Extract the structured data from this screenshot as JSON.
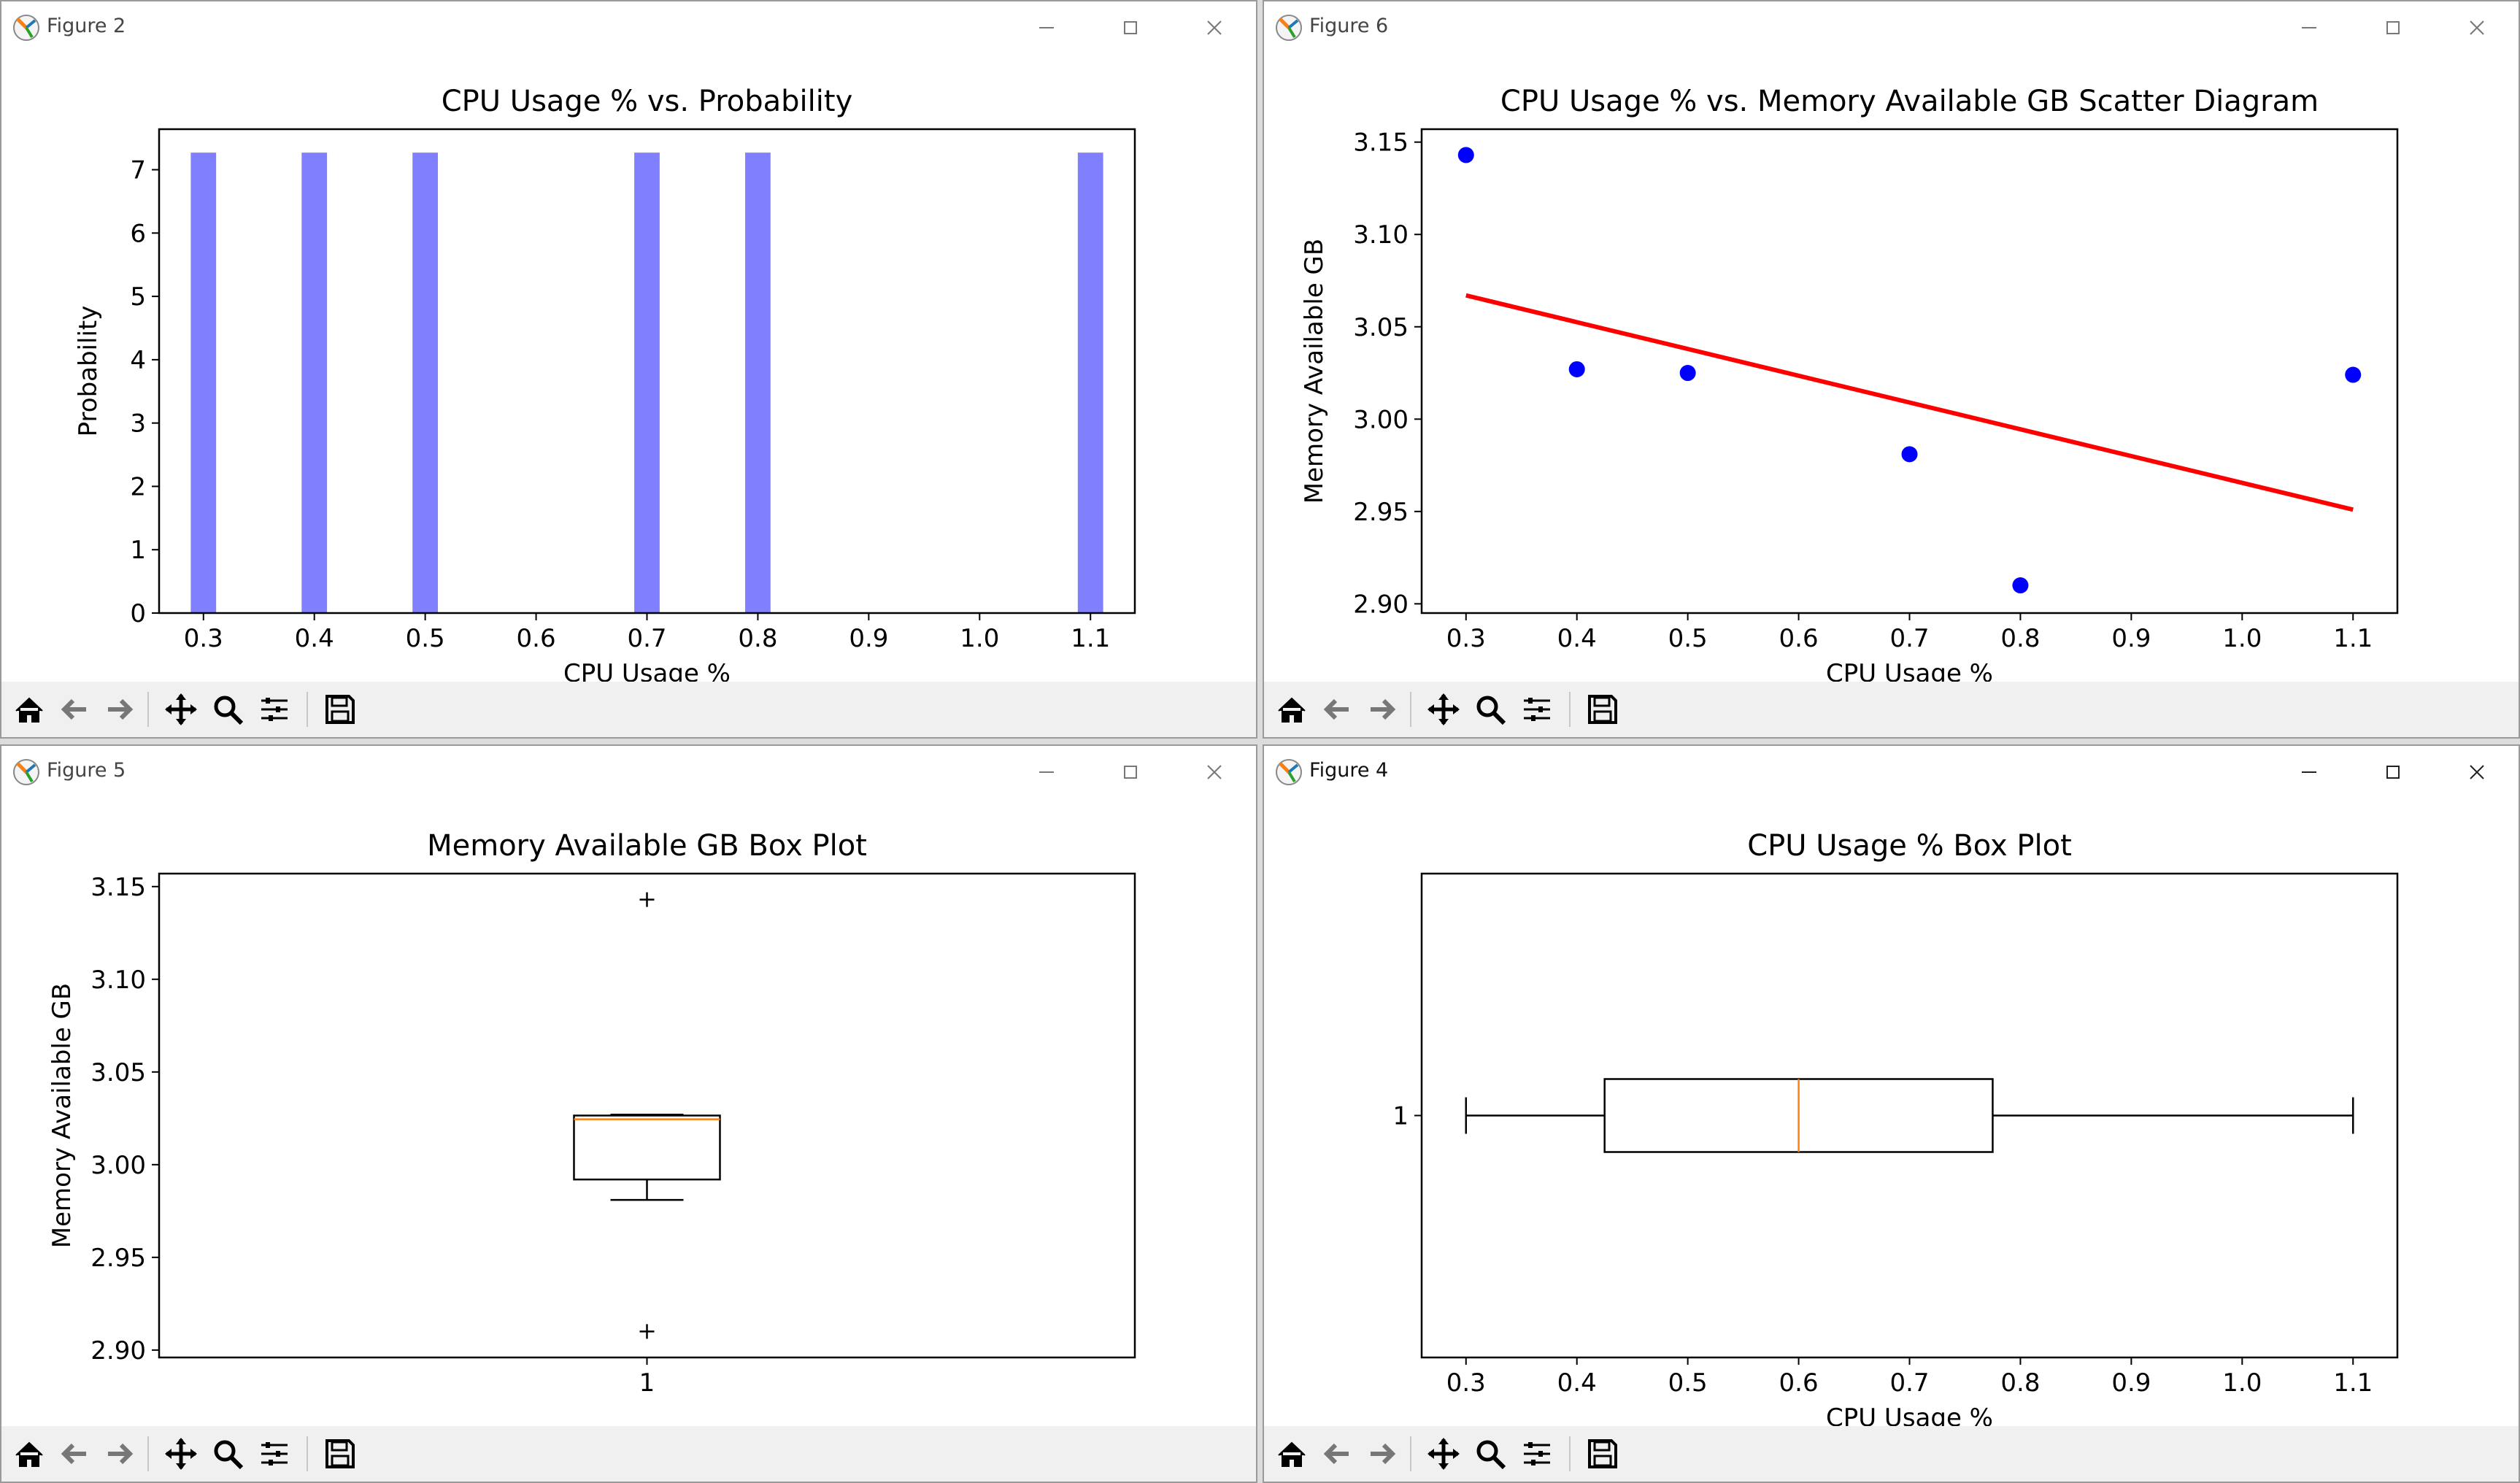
{
  "windows": [
    {
      "id": "fig2",
      "title": "Figure 2",
      "active": false
    },
    {
      "id": "fig6",
      "title": "Figure 6",
      "active": false
    },
    {
      "id": "fig5",
      "title": "Figure 5",
      "active": false
    },
    {
      "id": "fig4",
      "title": "Figure 4",
      "active": true
    }
  ],
  "toolbar_icons": [
    "home-icon",
    "back-arrow-icon",
    "forward-arrow-icon",
    "pan-icon",
    "zoom-icon",
    "configure-subplots-icon",
    "save-icon"
  ],
  "colors": {
    "histogram_bar": "#8080ff",
    "scatter_point": "#0000ff",
    "regression_line": "#ff0000",
    "median_line": "#ff7f0e"
  },
  "chart_data": [
    {
      "window": "fig2",
      "type": "bar",
      "title": "CPU Usage % vs. Probability",
      "xlabel": "CPU Usage %",
      "ylabel": "Probability",
      "x": [
        0.3,
        0.4,
        0.5,
        0.7,
        0.8,
        1.1
      ],
      "values": [
        7.27,
        7.27,
        7.27,
        7.27,
        7.27,
        7.27
      ],
      "bar_width": 0.0229,
      "xlim": [
        0.26,
        1.14
      ],
      "ylim": [
        0,
        7.64
      ],
      "xticks": [
        "0.3",
        "0.4",
        "0.5",
        "0.6",
        "0.7",
        "0.8",
        "0.9",
        "1.0",
        "1.1"
      ],
      "yticks": [
        "0",
        "1",
        "2",
        "3",
        "4",
        "5",
        "6",
        "7"
      ],
      "grid": false
    },
    {
      "window": "fig6",
      "type": "scatter",
      "title": "CPU Usage % vs. Memory Available GB Scatter Diagram",
      "xlabel": "CPU Usage %",
      "ylabel": "Memory Available GB",
      "points": [
        {
          "x": 0.3,
          "y": 3.143
        },
        {
          "x": 0.4,
          "y": 3.027
        },
        {
          "x": 0.5,
          "y": 3.025
        },
        {
          "x": 0.7,
          "y": 2.981
        },
        {
          "x": 0.8,
          "y": 2.91
        },
        {
          "x": 1.1,
          "y": 3.024
        }
      ],
      "fit_line": [
        {
          "x": 0.3,
          "y": 3.067
        },
        {
          "x": 1.1,
          "y": 2.951
        }
      ],
      "xlim": [
        0.26,
        1.14
      ],
      "ylim": [
        2.895,
        3.157
      ],
      "xticks": [
        "0.3",
        "0.4",
        "0.5",
        "0.6",
        "0.7",
        "0.8",
        "0.9",
        "1.0",
        "1.1"
      ],
      "yticks": [
        "2.90",
        "2.95",
        "3.00",
        "3.05",
        "3.10",
        "3.15"
      ],
      "grid": false
    },
    {
      "window": "fig5",
      "type": "box",
      "orientation": "vertical",
      "title": "Memory Available GB Box Plot",
      "ylabel": "Memory Available GB",
      "category_label": "1",
      "whisker_low": 2.981,
      "q1": 2.992,
      "median": 3.0245,
      "q3": 3.0265,
      "whisker_high": 3.027,
      "outliers": [
        3.143,
        2.91
      ],
      "ylim": [
        2.896,
        3.157
      ],
      "yticks": [
        "2.90",
        "2.95",
        "3.00",
        "3.05",
        "3.10",
        "3.15"
      ],
      "grid": false
    },
    {
      "window": "fig4",
      "type": "box",
      "orientation": "horizontal",
      "title": "CPU Usage % Box Plot",
      "xlabel": "CPU Usage %",
      "category_label": "1",
      "whisker_low": 0.3,
      "q1": 0.425,
      "median": 0.6,
      "q3": 0.775,
      "whisker_high": 1.1,
      "outliers": [],
      "xlim": [
        0.26,
        1.14
      ],
      "xticks": [
        "0.3",
        "0.4",
        "0.5",
        "0.6",
        "0.7",
        "0.8",
        "0.9",
        "1.0",
        "1.1"
      ],
      "grid": false
    }
  ]
}
